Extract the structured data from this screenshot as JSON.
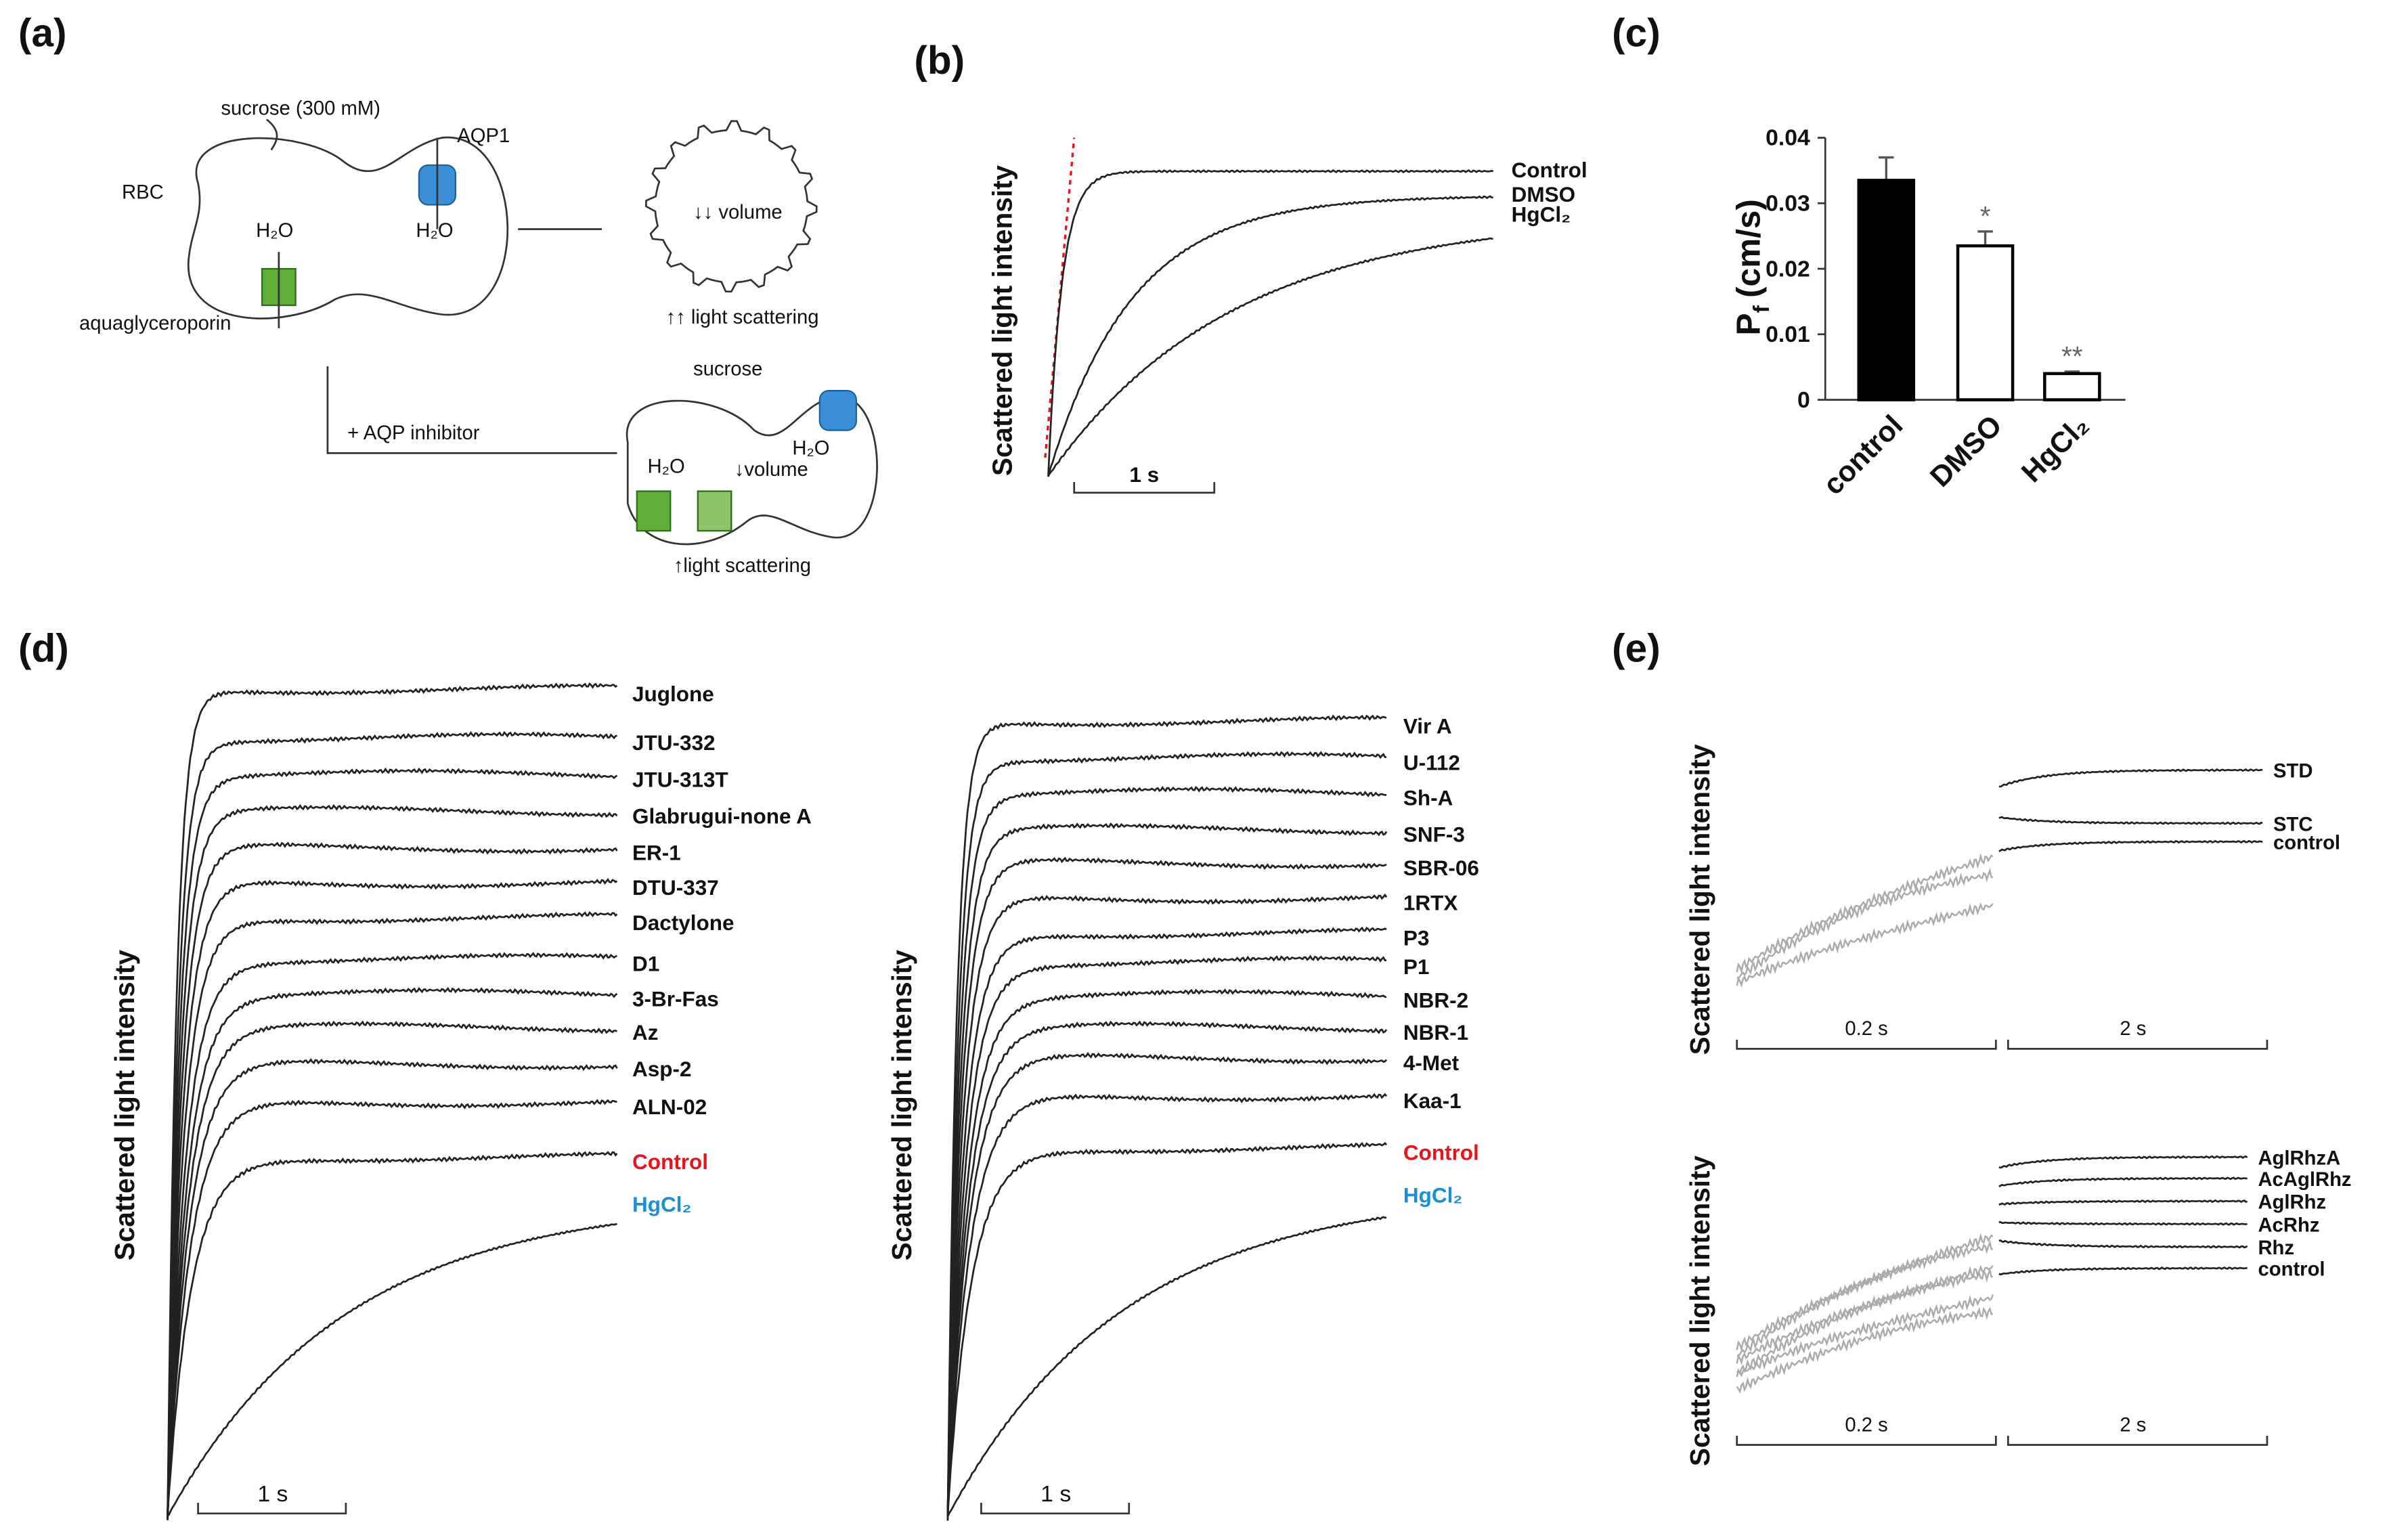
{
  "panel_labels": [
    "(a)",
    "(b)",
    "(c)",
    "(d)",
    "(e)"
  ],
  "a": {
    "texts": [
      "sucrose (300 mM)",
      "AQP1",
      "RBC",
      "H₂O",
      "H₂O",
      "aquaglyceroporin",
      "↓↓ volume",
      "↑↑ light scattering",
      "+ AQP inhibitor",
      "sucrose",
      "H₂O",
      "↓volume",
      "H₂O",
      "↑light scattering"
    ]
  },
  "b": {
    "y_label": "Scattered light intensity",
    "traces": [
      "Control",
      "DMSO",
      "HgCl₂"
    ],
    "scale_bar": "1 s"
  },
  "chart_data": {
    "type": "bar",
    "y_label": {
      "main": "P",
      "sub": "f",
      "unit": "(cm/s)"
    },
    "categories": [
      "control",
      "DMSO",
      "HgCl₂"
    ],
    "values": [
      0.0335,
      0.0235,
      0.004
    ],
    "errors": [
      0.0035,
      0.0022,
      0.0003
    ],
    "colors": [
      "#000000",
      "#ffffff",
      "#ffffff"
    ],
    "significance": [
      null,
      "*",
      "**"
    ],
    "ylim": [
      0,
      0.04
    ],
    "yticks": [
      0,
      0.01,
      0.02,
      0.03,
      0.04
    ]
  },
  "d": {
    "y_label": "Scattered light intensity",
    "scale_bar": "1 s",
    "left": [
      {
        "name": "Juglone"
      },
      {
        "name": "JTU-332"
      },
      {
        "name": "JTU-313T"
      },
      {
        "name": "Glabrugui-none A"
      },
      {
        "name": "ER-1"
      },
      {
        "name": "DTU-337"
      },
      {
        "name": "Dactylone"
      },
      {
        "name": "D1"
      },
      {
        "name": "3-Br-Fas"
      },
      {
        "name": "Az"
      },
      {
        "name": "Asp-2"
      },
      {
        "name": "ALN-02"
      },
      {
        "name": "Control",
        "color": "#e8141c"
      },
      {
        "name": "HgCl₂",
        "color": "#1a8fd6"
      }
    ],
    "right": [
      {
        "name": "Vir A"
      },
      {
        "name": "U-112"
      },
      {
        "name": "Sh-A"
      },
      {
        "name": "SNF-3"
      },
      {
        "name": "SBR-06"
      },
      {
        "name": "1RTX"
      },
      {
        "name": "P3"
      },
      {
        "name": "P1"
      },
      {
        "name": "NBR-2"
      },
      {
        "name": "NBR-1"
      },
      {
        "name": "4-Met"
      },
      {
        "name": "Kaa-1"
      },
      {
        "name": "Control",
        "color": "#e8141c"
      },
      {
        "name": "HgCl₂",
        "color": "#1a8fd6"
      }
    ]
  },
  "e": {
    "y_label": "Scattered light intensity",
    "scale_bars": [
      "0.2 s",
      "2 s"
    ],
    "top": [
      "STD",
      "STC",
      "control"
    ],
    "bottom": [
      "AglRhzA",
      "AcAglRhz",
      "AglRhz",
      "AcRhz",
      "Rhz",
      "control"
    ]
  }
}
